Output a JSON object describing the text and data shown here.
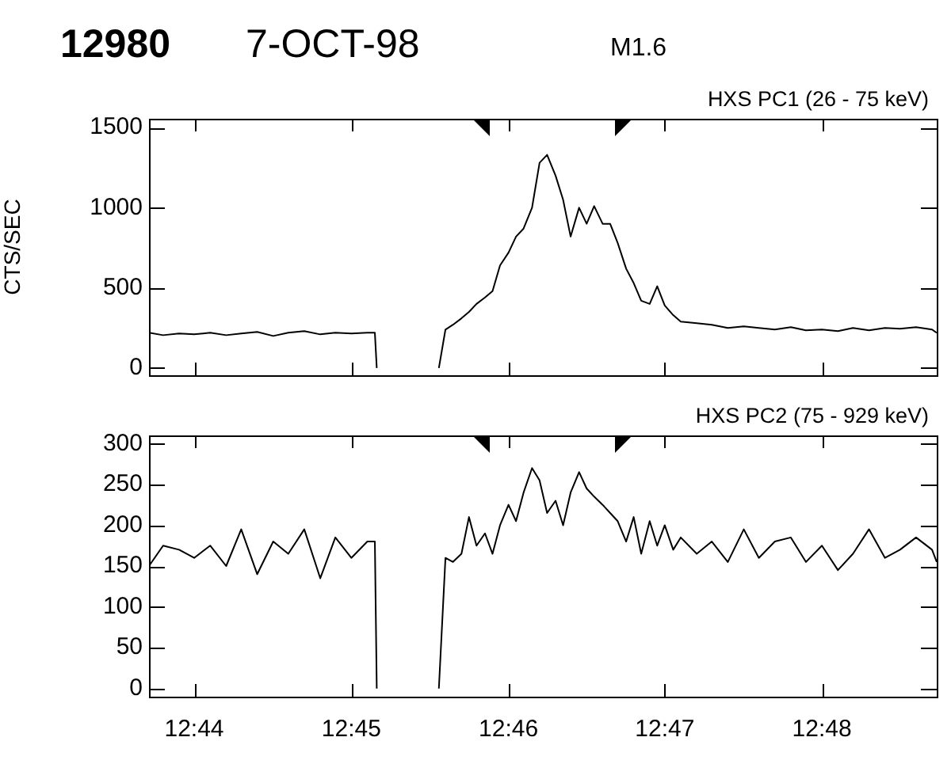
{
  "chart_data": [
    {
      "type": "line",
      "title": "12980",
      "subtitle": "7-OCT-98",
      "ylabel": "CTS/SEC",
      "annotations": [
        "M1.6",
        "HXS PC1 (26 - 75 keV)"
      ],
      "x": [
        12.7285,
        12.73,
        12.7317,
        12.7333,
        12.735,
        12.7367,
        12.7383,
        12.74,
        12.7417,
        12.7433,
        12.745,
        12.7467,
        12.7483,
        12.75,
        12.7517,
        12.7525,
        12.7527,
        12.756,
        12.7593,
        12.76,
        12.7608,
        12.7617,
        12.7625,
        12.7633,
        12.7642,
        12.765,
        12.7658,
        12.7667,
        12.7675,
        12.7683,
        12.7692,
        12.77,
        12.7708,
        12.7717,
        12.7725,
        12.7733,
        12.7742,
        12.775,
        12.7758,
        12.7767,
        12.7775,
        12.7783,
        12.7792,
        12.78,
        12.7808,
        12.7817,
        12.7825,
        12.7833,
        12.7842,
        12.785,
        12.7867,
        12.7883,
        12.79,
        12.7917,
        12.7933,
        12.795,
        12.7967,
        12.7983,
        12.8,
        12.8017,
        12.8033,
        12.805,
        12.8067,
        12.8083,
        12.81,
        12.8117,
        12.8122
      ],
      "series": [
        {
          "color": "#000000",
          "values": [
            220,
            205,
            215,
            210,
            220,
            205,
            215,
            225,
            200,
            220,
            230,
            210,
            220,
            215,
            220,
            220,
            0,
            null,
            0,
            240,
            270,
            310,
            350,
            400,
            440,
            480,
            640,
            720,
            820,
            870,
            1000,
            1280,
            1330,
            1200,
            1050,
            820,
            1000,
            900,
            1010,
            900,
            900,
            780,
            620,
            530,
            420,
            400,
            510,
            390,
            330,
            290,
            280,
            270,
            250,
            260,
            250,
            240,
            255,
            235,
            240,
            230,
            250,
            235,
            250,
            245,
            255,
            240,
            220
          ]
        }
      ],
      "xlim": [
        12.7285,
        12.8122
      ],
      "xticks": [
        {
          "value": 12.7333,
          "label": null
        },
        {
          "value": 12.75,
          "label": null
        },
        {
          "value": 12.7667,
          "label": null
        },
        {
          "value": 12.7833,
          "label": null
        },
        {
          "value": 12.8,
          "label": null
        }
      ],
      "ylim": [
        -45,
        1555
      ],
      "yticks": [
        0,
        500,
        1000,
        1500
      ],
      "tick_labels": "y",
      "marker": "none",
      "line_style": "solid"
    },
    {
      "type": "line",
      "annotations": [
        "HXS PC2 (75 - 929 keV)"
      ],
      "x": [
        12.7285,
        12.73,
        12.7317,
        12.7333,
        12.735,
        12.7367,
        12.7383,
        12.74,
        12.7417,
        12.7433,
        12.745,
        12.7467,
        12.7483,
        12.75,
        12.7517,
        12.7525,
        12.7527,
        12.756,
        12.7593,
        12.76,
        12.7608,
        12.7617,
        12.7625,
        12.7633,
        12.7642,
        12.765,
        12.7658,
        12.7667,
        12.7675,
        12.7683,
        12.7692,
        12.77,
        12.7708,
        12.7717,
        12.7725,
        12.7733,
        12.7742,
        12.775,
        12.7758,
        12.7767,
        12.7775,
        12.7783,
        12.7792,
        12.78,
        12.7808,
        12.7817,
        12.7825,
        12.7833,
        12.7842,
        12.785,
        12.7867,
        12.7883,
        12.79,
        12.7917,
        12.7933,
        12.795,
        12.7967,
        12.7983,
        12.8,
        12.8017,
        12.8033,
        12.805,
        12.8067,
        12.8083,
        12.81,
        12.8117,
        12.8122
      ],
      "series": [
        {
          "color": "#000000",
          "values": [
            150,
            175,
            170,
            160,
            175,
            150,
            195,
            140,
            180,
            165,
            195,
            135,
            185,
            160,
            180,
            180,
            0,
            null,
            0,
            160,
            155,
            165,
            210,
            175,
            190,
            165,
            200,
            225,
            205,
            240,
            270,
            255,
            215,
            230,
            200,
            240,
            265,
            245,
            235,
            225,
            215,
            205,
            180,
            210,
            165,
            205,
            175,
            200,
            170,
            185,
            165,
            180,
            155,
            195,
            160,
            180,
            185,
            155,
            175,
            145,
            165,
            195,
            160,
            170,
            185,
            170,
            155
          ]
        }
      ],
      "xlim": [
        12.7285,
        12.8122
      ],
      "xticks": [
        {
          "value": 12.7333,
          "label": "12:44"
        },
        {
          "value": 12.75,
          "label": "12:45"
        },
        {
          "value": 12.7667,
          "label": "12:46"
        },
        {
          "value": 12.7833,
          "label": "12:47"
        },
        {
          "value": 12.8,
          "label": "12:48"
        }
      ],
      "ylim": [
        -10,
        310
      ],
      "yticks": [
        0,
        50,
        100,
        150,
        200,
        250,
        300
      ],
      "marker": "none",
      "line_style": "solid"
    }
  ]
}
